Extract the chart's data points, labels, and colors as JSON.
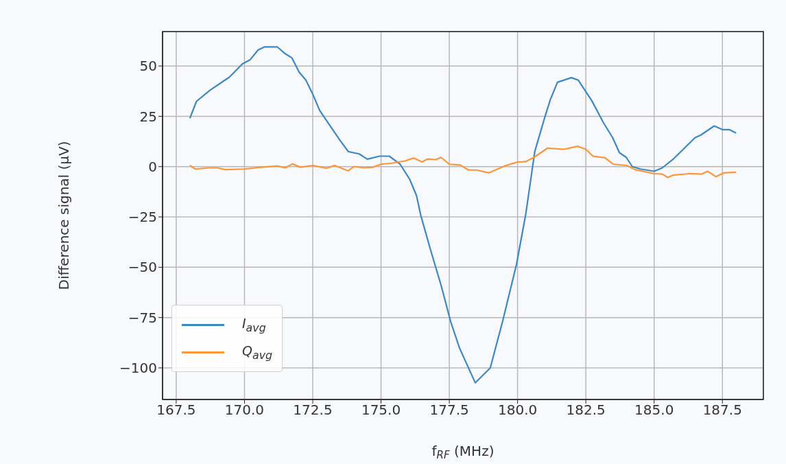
{
  "chart_data": {
    "type": "line",
    "xlabel": "f$_{RF}$ (MHz)",
    "ylabel": "Difference signal (µV)",
    "xlim": [
      167,
      189
    ],
    "ylim": [
      -115.7,
      67.1
    ],
    "xticks": [
      167.5,
      {
        "value": 170,
        "label": "170.0"
      },
      172.5,
      {
        "value": 175,
        "label": "175.0"
      },
      177.5,
      {
        "value": 180,
        "label": "180.0"
      },
      182.5,
      {
        "value": 185,
        "label": "185.0"
      },
      187.5
    ],
    "yticks": [
      {
        "value": -100,
        "label": "−100"
      },
      {
        "value": -75,
        "label": "−75"
      },
      {
        "value": -50,
        "label": "−50"
      },
      {
        "value": -25,
        "label": "−25"
      },
      0,
      25,
      50
    ],
    "grid": true,
    "legend": "bottom left",
    "marker": "none",
    "line_style": "solid",
    "series": [
      {
        "name": "I$_{avg}$",
        "color": "#3b88c3",
        "x": [
          168.0,
          168.24,
          168.74,
          169.07,
          169.45,
          169.92,
          170.2,
          170.5,
          170.74,
          171.2,
          171.5,
          171.74,
          172.0,
          172.25,
          172.5,
          172.75,
          173.0,
          173.5,
          173.8,
          174.2,
          174.5,
          174.95,
          175.3,
          175.7,
          176.05,
          176.3,
          176.45,
          176.78,
          177.2,
          177.55,
          177.87,
          178.45,
          179.0,
          179.45,
          179.96,
          180.3,
          180.63,
          181.0,
          181.2,
          181.46,
          181.97,
          182.22,
          182.72,
          183.14,
          183.48,
          183.73,
          183.98,
          184.2,
          184.5,
          185.0,
          185.3,
          185.72,
          186.5,
          186.7,
          187.2,
          187.5,
          187.75,
          188.0
        ],
        "values": [
          24,
          32.4,
          38,
          41,
          44.5,
          51,
          53,
          58,
          59.5,
          59.5,
          56,
          54,
          47,
          43,
          36,
          28,
          23,
          13,
          7.5,
          6.3,
          3.7,
          5.2,
          5.2,
          1.2,
          -6.3,
          -14.4,
          -23.9,
          -39.8,
          -59,
          -77,
          -90,
          -107.4,
          -100,
          -77,
          -48.6,
          -23.6,
          7.5,
          24.7,
          33.3,
          41.9,
          44.2,
          43,
          32.7,
          21.9,
          14.4,
          6.9,
          4.6,
          0,
          -1.2,
          -2.3,
          -0.6,
          4,
          14.4,
          15.6,
          20.2,
          18.4,
          18.4,
          16.7
        ]
      },
      {
        "name": "Q$_{avg}$",
        "color": "#fd9539",
        "x": [
          168.0,
          168.2,
          168.7,
          169.0,
          169.3,
          170.0,
          170.6,
          171.2,
          171.5,
          171.76,
          172.05,
          172.5,
          173.0,
          173.3,
          173.8,
          174.0,
          174.4,
          174.7,
          175.0,
          175.4,
          175.9,
          176.2,
          176.5,
          176.7,
          177.0,
          177.2,
          177.5,
          177.9,
          178.2,
          178.5,
          178.95,
          179.5,
          180.0,
          180.3,
          180.6,
          181.1,
          181.7,
          181.97,
          182.2,
          182.5,
          182.76,
          183.2,
          183.5,
          184.0,
          184.3,
          185.0,
          185.3,
          185.5,
          185.7,
          186.3,
          186.75,
          186.96,
          187.26,
          187.55,
          188.0
        ],
        "values": [
          0.6,
          -1.2,
          -0.6,
          -0.6,
          -1.5,
          -1.2,
          -0.3,
          0.3,
          -0.6,
          1.4,
          -0.3,
          0.6,
          -0.8,
          0.6,
          -2.1,
          0,
          -0.6,
          -0.3,
          1.2,
          1.7,
          2.9,
          4.3,
          2.3,
          3.8,
          3.5,
          4.6,
          1.2,
          0.8,
          -1.7,
          -1.7,
          -3.1,
          0.2,
          2.3,
          2.5,
          4.6,
          9.2,
          8.6,
          9.4,
          10.1,
          8.6,
          5.2,
          4.4,
          1.2,
          0.6,
          -1.5,
          -3.5,
          -3.7,
          -5.4,
          -4.2,
          -3.5,
          -3.7,
          -2.3,
          -5,
          -3.1,
          -2.8
        ]
      }
    ]
  }
}
